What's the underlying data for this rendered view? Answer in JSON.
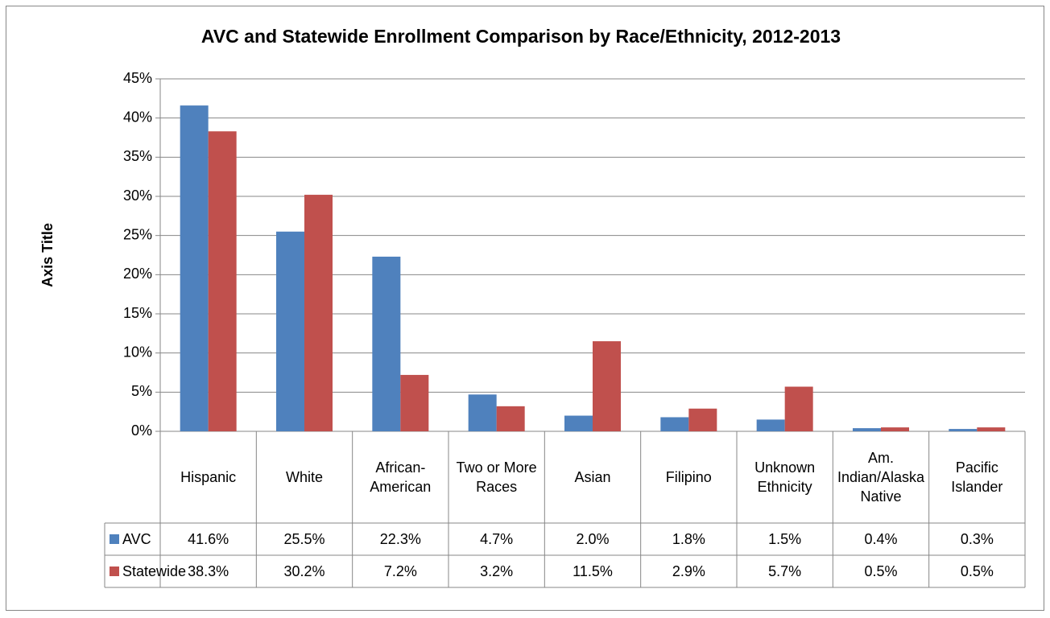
{
  "chart_data": {
    "type": "bar",
    "title": "AVC and Statewide Enrollment Comparison by Race/Ethnicity, 2012-2013",
    "y_label": "Axis Title",
    "categories": [
      "Hispanic",
      "White",
      "African-American",
      "Two or More Races",
      "Asian",
      "Filipino",
      "Unknown Ethnicity",
      "Am. Indian/Alaska Native",
      "Pacific Islander"
    ],
    "series": [
      {
        "name": "AVC",
        "color": "#4f81bd",
        "values": [
          41.6,
          25.5,
          22.3,
          4.7,
          2.0,
          1.8,
          1.5,
          0.4,
          0.3
        ],
        "value_labels": [
          "41.6%",
          "25.5%",
          "22.3%",
          "4.7%",
          "2.0%",
          "1.8%",
          "1.5%",
          "0.4%",
          "0.3%"
        ]
      },
      {
        "name": "Statewide",
        "color": "#c0504d",
        "values": [
          38.3,
          30.2,
          7.2,
          3.2,
          11.5,
          2.9,
          5.7,
          0.5,
          0.5
        ],
        "value_labels": [
          "38.3%",
          "30.2%",
          "7.2%",
          "3.2%",
          "11.5%",
          "2.9%",
          "5.7%",
          "0.5%",
          "0.5%"
        ]
      }
    ],
    "ylim": [
      0,
      45
    ],
    "yticks": [
      {
        "value": 0,
        "label": "0%"
      },
      {
        "value": 5,
        "label": "5%"
      },
      {
        "value": 10,
        "label": "10%"
      },
      {
        "value": 15,
        "label": "15%"
      },
      {
        "value": 20,
        "label": "20%"
      },
      {
        "value": 25,
        "label": "25%"
      },
      {
        "value": 30,
        "label": "30%"
      },
      {
        "value": 35,
        "label": "35%"
      },
      {
        "value": 40,
        "label": "40%"
      },
      {
        "value": 45,
        "label": "45%"
      }
    ],
    "grid": true
  }
}
